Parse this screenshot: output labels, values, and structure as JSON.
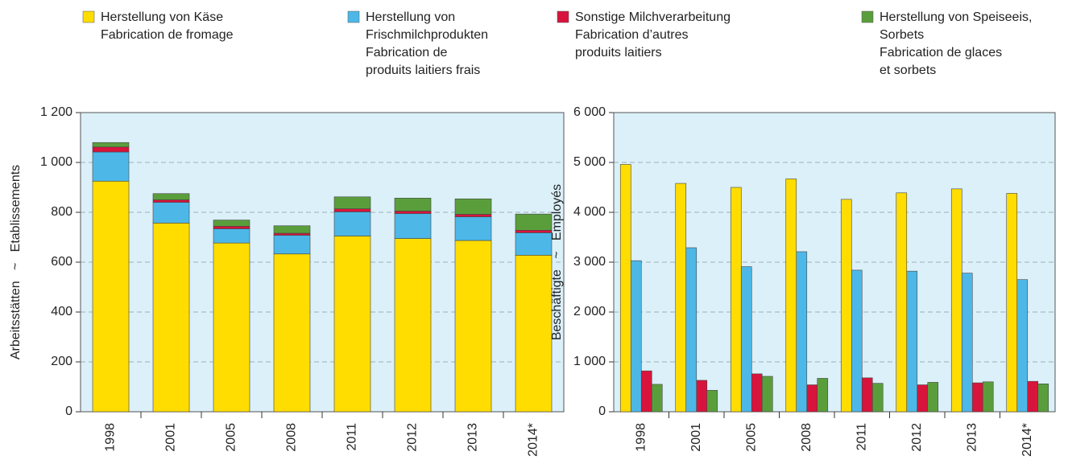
{
  "chart_data": [
    {
      "type": "stacked_bar",
      "ylabel": "Arbeitsstätten   ~   Etablissements",
      "categories": [
        "1998",
        "2001",
        "2005",
        "2008",
        "2011",
        "2012",
        "2013",
        "2014*"
      ],
      "series": [
        {
          "name": "Herstellung von Käse\nFabrication de fromage",
          "color": "#ffdd00",
          "values": [
            925,
            757,
            677,
            633,
            705,
            695,
            687,
            628
          ]
        },
        {
          "name": "Herstellung von\nFrischmilchprodukten\nFabrication de\nproduits laitiers frais",
          "color": "#4db8e8",
          "values": [
            117,
            83,
            57,
            75,
            97,
            100,
            95,
            90
          ]
        },
        {
          "name": "Sonstige Milchverarbeitung\nFabrication d’autres\nproduits laitiers",
          "color": "#d9143c",
          "values": [
            20,
            10,
            10,
            8,
            12,
            10,
            10,
            10
          ]
        },
        {
          "name": "Herstellung von Speiseeis,\nSorbets\nFabrication de glaces\net sorbets",
          "color": "#5a9e3c",
          "values": [
            18,
            25,
            25,
            30,
            48,
            52,
            62,
            65
          ]
        }
      ],
      "ylim": [
        0,
        1200
      ],
      "yticks": [
        0,
        200,
        400,
        600,
        800,
        {
          "value": 1000,
          "label": "1 000"
        },
        {
          "value": 1200,
          "label": "1 200"
        }
      ],
      "grid": true
    },
    {
      "type": "grouped_bar",
      "ylabel": "Beschäftigte   ~   Employés",
      "categories": [
        "1998",
        "2001",
        "2005",
        "2008",
        "2011",
        "2012",
        "2013",
        "2014*"
      ],
      "series": [
        {
          "color": "#ffdd00",
          "values": [
            4960,
            4580,
            4500,
            4670,
            4260,
            4390,
            4470,
            4380
          ]
        },
        {
          "color": "#4db8e8",
          "values": [
            3030,
            3290,
            2910,
            3210,
            2840,
            2820,
            2780,
            2650
          ]
        },
        {
          "color": "#d9143c",
          "values": [
            820,
            630,
            760,
            540,
            680,
            540,
            580,
            610
          ]
        },
        {
          "color": "#5a9e3c",
          "values": [
            550,
            430,
            710,
            670,
            570,
            590,
            600,
            560
          ]
        }
      ],
      "ylim": [
        0,
        6000
      ],
      "yticks": [
        0,
        {
          "value": 1000,
          "label": "1 000"
        },
        {
          "value": 2000,
          "label": "2 000"
        },
        {
          "value": 3000,
          "label": "3 000"
        },
        {
          "value": 4000,
          "label": "4 000"
        },
        {
          "value": 5000,
          "label": "5 000"
        },
        {
          "value": 6000,
          "label": "6 000"
        }
      ],
      "grid": true
    }
  ]
}
